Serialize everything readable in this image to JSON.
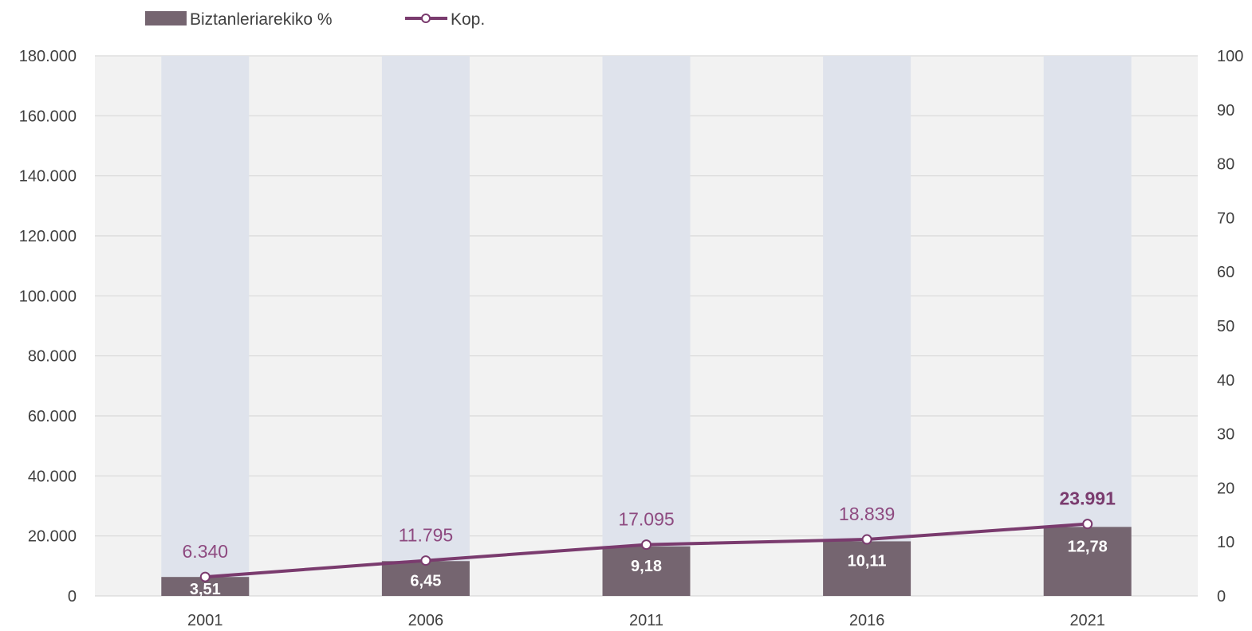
{
  "chart_data": {
    "type": "bar",
    "categories": [
      "2001",
      "2006",
      "2011",
      "2016",
      "2021"
    ],
    "series": [
      {
        "name": "Biztanleriarekiko %",
        "kind": "bar",
        "axis": "right",
        "values": [
          3.51,
          6.45,
          9.18,
          10.11,
          12.78
        ],
        "labels": [
          "3,51",
          "6,45",
          "9,18",
          "10,11",
          "12,78"
        ],
        "color": "#756570"
      },
      {
        "name": "Kop.",
        "kind": "line",
        "axis": "left",
        "values": [
          6340,
          11795,
          17095,
          18839,
          23991
        ],
        "labels": [
          "6.340",
          "11.795",
          "17.095",
          "18.839",
          "23.991"
        ],
        "color": "#7a3b6e"
      }
    ],
    "background_bar": {
      "value": 100,
      "color": "#dfe3ec"
    },
    "left_axis": {
      "ylim": [
        0,
        180000
      ],
      "ticks": [
        "0",
        "20.000",
        "40.000",
        "60.000",
        "80.000",
        "100.000",
        "120.000",
        "140.000",
        "160.000",
        "180.000"
      ]
    },
    "right_axis": {
      "ylim": [
        0,
        100
      ],
      "ticks": [
        "0",
        "10",
        "20",
        "30",
        "40",
        "50",
        "60",
        "70",
        "80",
        "90",
        "100"
      ]
    },
    "legend_position": "top-left",
    "grid": true,
    "plot_background": "#f2f2f2",
    "grid_color": "#d9d9d9"
  }
}
